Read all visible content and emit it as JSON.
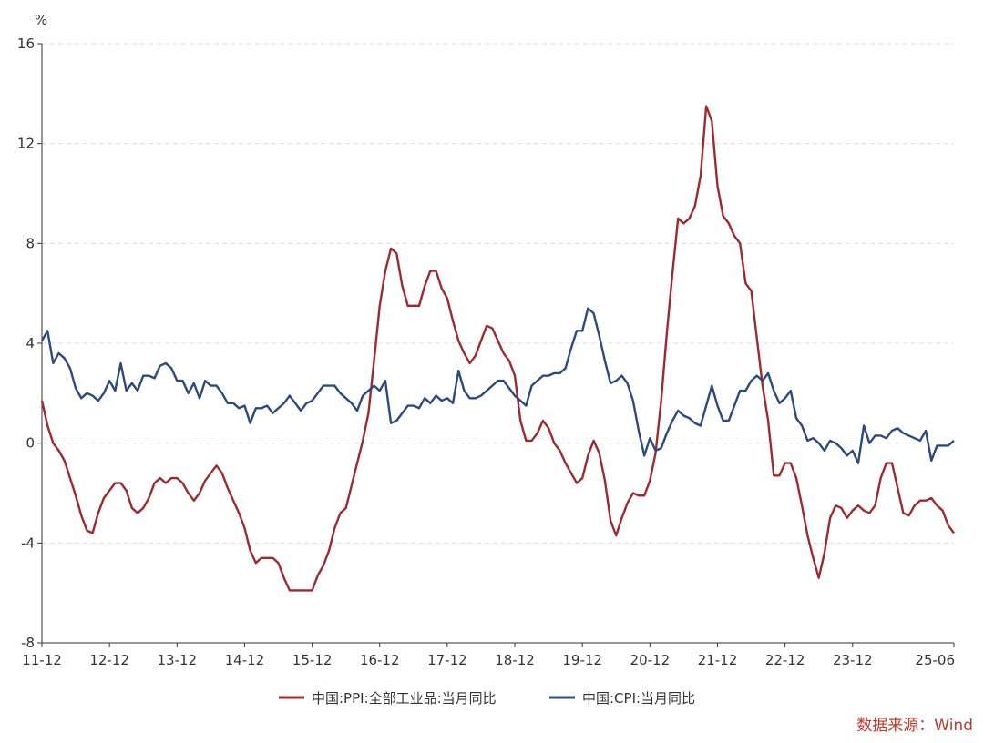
{
  "chart_data": {
    "type": "line",
    "unit_label": "%",
    "x_tick_labels": [
      "11-12",
      "12-12",
      "13-12",
      "14-12",
      "15-12",
      "16-12",
      "17-12",
      "18-12",
      "19-12",
      "20-12",
      "21-12",
      "22-12",
      "23-12",
      "25-06"
    ],
    "y_ticks": [
      16,
      12,
      8,
      4,
      0,
      -4,
      -8
    ],
    "ylim": [
      -8,
      16
    ],
    "grid": true,
    "legend_position": "bottom",
    "series": [
      {
        "name": "中国:PPI:全部工业品:当月同比",
        "color": "#9e2a2f",
        "values": [
          1.7,
          0.7,
          0.0,
          -0.3,
          -0.7,
          -1.4,
          -2.1,
          -2.9,
          -3.5,
          -3.6,
          -2.8,
          -2.2,
          -1.9,
          -1.6,
          -1.6,
          -1.9,
          -2.6,
          -2.8,
          -2.6,
          -2.2,
          -1.6,
          -1.4,
          -1.6,
          -1.4,
          -1.4,
          -1.6,
          -2.0,
          -2.3,
          -2.0,
          -1.5,
          -1.2,
          -0.9,
          -1.2,
          -1.8,
          -2.3,
          -2.8,
          -3.4,
          -4.3,
          -4.8,
          -4.6,
          -4.6,
          -4.6,
          -4.8,
          -5.4,
          -5.9,
          -5.9,
          -5.9,
          -5.9,
          -5.9,
          -5.3,
          -4.9,
          -4.3,
          -3.4,
          -2.8,
          -2.6,
          -1.7,
          -0.8,
          0.1,
          1.2,
          3.3,
          5.5,
          6.9,
          7.8,
          7.6,
          6.3,
          5.5,
          5.5,
          5.5,
          6.3,
          6.9,
          6.9,
          6.2,
          5.8,
          4.9,
          4.1,
          3.6,
          3.2,
          3.5,
          4.1,
          4.7,
          4.6,
          4.1,
          3.6,
          3.3,
          2.7,
          0.9,
          0.1,
          0.1,
          0.4,
          0.9,
          0.6,
          0.0,
          -0.3,
          -0.8,
          -1.2,
          -1.6,
          -1.4,
          -0.5,
          0.1,
          -0.4,
          -1.5,
          -3.1,
          -3.7,
          -3.0,
          -2.4,
          -2.0,
          -2.1,
          -2.1,
          -1.5,
          -0.4,
          1.7,
          4.4,
          6.8,
          9.0,
          8.8,
          9.0,
          9.5,
          10.7,
          13.5,
          12.9,
          10.3,
          9.1,
          8.8,
          8.3,
          8.0,
          6.4,
          6.1,
          4.2,
          2.3,
          0.9,
          -1.3,
          -1.3,
          -0.8,
          -0.8,
          -1.4,
          -2.5,
          -3.7,
          -4.6,
          -5.4,
          -4.4,
          -3.0,
          -2.5,
          -2.6,
          -3.0,
          -2.7,
          -2.5,
          -2.7,
          -2.8,
          -2.5,
          -1.4,
          -0.8,
          -0.8,
          -1.8,
          -2.8,
          -2.9,
          -2.5,
          -2.3,
          -2.3,
          -2.2,
          -2.5,
          -2.7,
          -3.3,
          -3.6
        ]
      },
      {
        "name": "中国:CPI:当月同比",
        "color": "#2c4a7e",
        "values": [
          4.1,
          4.5,
          3.2,
          3.6,
          3.4,
          3.0,
          2.2,
          1.8,
          2.0,
          1.9,
          1.7,
          2.0,
          2.5,
          2.1,
          3.2,
          2.1,
          2.4,
          2.1,
          2.7,
          2.7,
          2.6,
          3.1,
          3.2,
          3.0,
          2.5,
          2.5,
          2.0,
          2.4,
          1.8,
          2.5,
          2.3,
          2.3,
          2.0,
          1.6,
          1.6,
          1.4,
          1.5,
          0.8,
          1.4,
          1.4,
          1.5,
          1.2,
          1.4,
          1.6,
          1.9,
          1.6,
          1.3,
          1.6,
          1.7,
          2.0,
          2.3,
          2.3,
          2.3,
          2.0,
          1.8,
          1.6,
          1.3,
          1.9,
          2.1,
          2.3,
          2.1,
          2.5,
          0.8,
          0.9,
          1.2,
          1.5,
          1.5,
          1.4,
          1.8,
          1.6,
          1.9,
          1.7,
          1.8,
          1.6,
          2.9,
          2.1,
          1.8,
          1.8,
          1.9,
          2.1,
          2.3,
          2.5,
          2.5,
          2.2,
          1.9,
          1.7,
          1.5,
          2.3,
          2.5,
          2.7,
          2.7,
          2.8,
          2.8,
          3.0,
          3.8,
          4.5,
          4.5,
          5.4,
          5.2,
          4.3,
          3.3,
          2.4,
          2.5,
          2.7,
          2.4,
          1.7,
          0.5,
          -0.5,
          0.2,
          -0.3,
          -0.2,
          0.4,
          0.9,
          1.3,
          1.1,
          1.0,
          0.8,
          0.7,
          1.5,
          2.3,
          1.5,
          0.9,
          0.9,
          1.5,
          2.1,
          2.1,
          2.5,
          2.7,
          2.5,
          2.8,
          2.1,
          1.6,
          1.8,
          2.1,
          1.0,
          0.7,
          0.1,
          0.2,
          0.0,
          -0.3,
          0.1,
          0.0,
          -0.2,
          -0.5,
          -0.3,
          -0.8,
          0.7,
          0.0,
          0.3,
          0.3,
          0.2,
          0.5,
          0.6,
          0.4,
          0.3,
          0.2,
          0.1,
          0.5,
          -0.7,
          -0.1,
          -0.1,
          -0.1,
          0.1
        ]
      }
    ],
    "source_text": "数据来源：Wind"
  }
}
